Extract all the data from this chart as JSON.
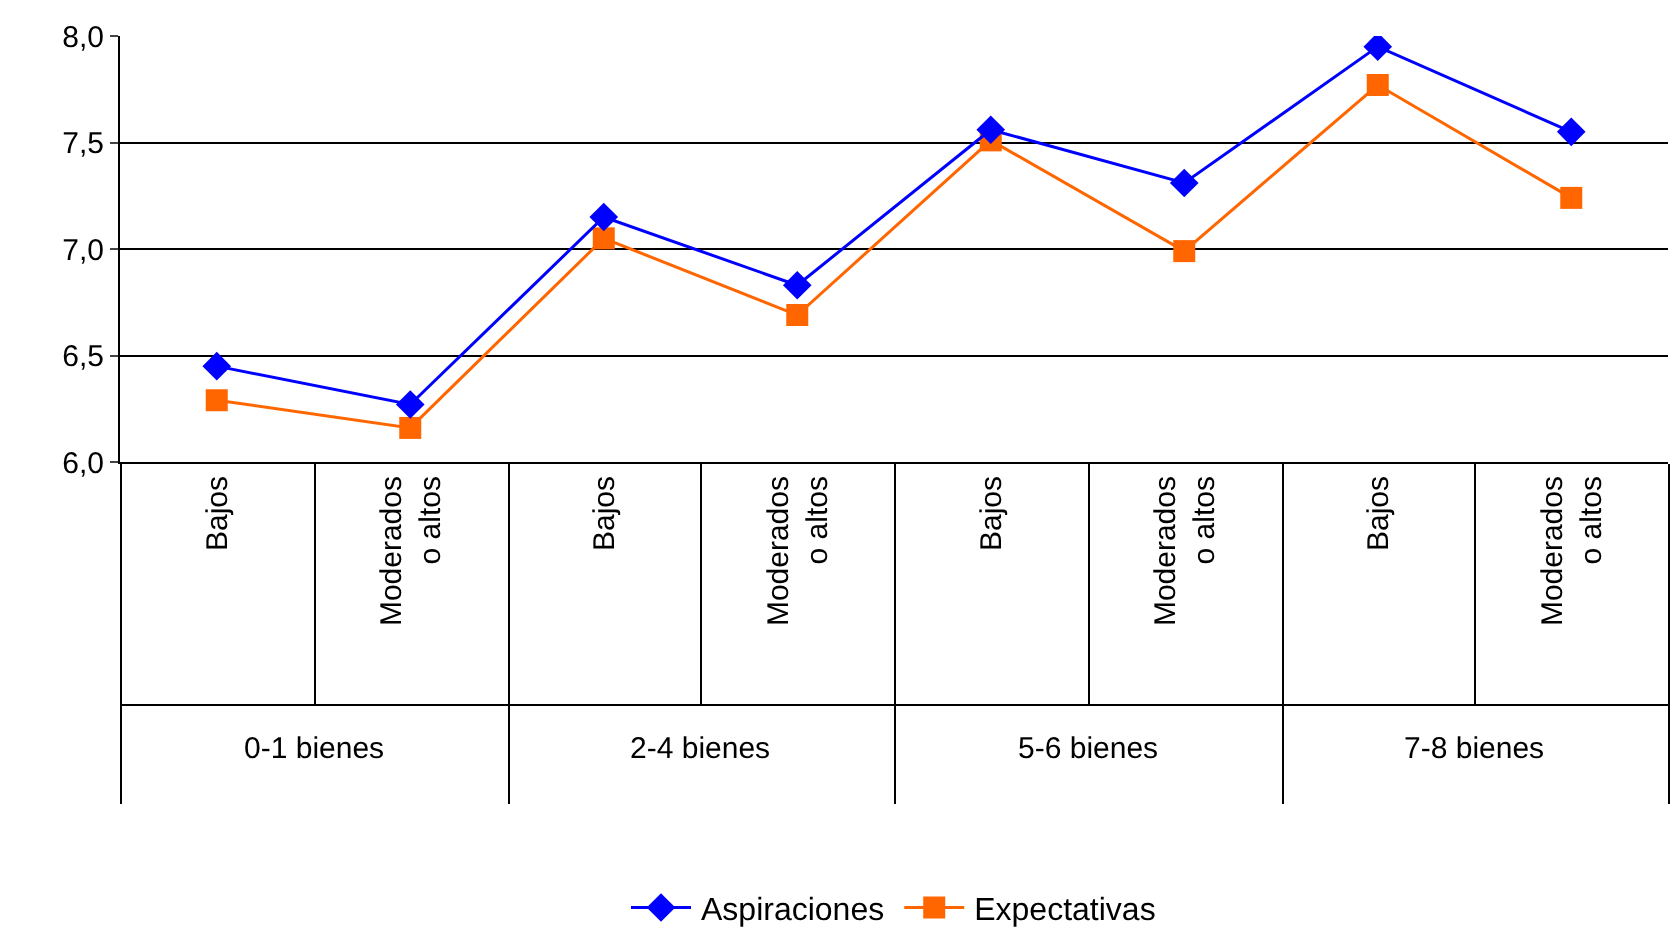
{
  "chart_data": {
    "type": "line",
    "categories": [
      "Bajos",
      "Moderados o altos",
      "Bajos",
      "Moderados o altos",
      "Bajos",
      "Moderados o altos",
      "Bajos",
      "Moderados o altos"
    ],
    "annotations": [
      "0-1 bienes",
      "2-4 bienes",
      "5-6 bienes",
      "7-8 bienes"
    ],
    "series": [
      {
        "name": "Aspiraciones",
        "color": "#0000ff",
        "marker": "diamond",
        "values": [
          6.45,
          6.27,
          7.15,
          6.83,
          7.56,
          7.31,
          7.95,
          7.55
        ]
      },
      {
        "name": "Expectativas",
        "color": "#ff6600",
        "marker": "square",
        "values": [
          6.29,
          6.16,
          7.05,
          6.69,
          7.51,
          6.99,
          7.77,
          7.24
        ]
      }
    ],
    "ylim": [
      6.0,
      8.0
    ],
    "yticks": [
      {
        "value": 6.0,
        "label": "6,0"
      },
      {
        "value": 6.5,
        "label": "6,5"
      },
      {
        "value": 7.0,
        "label": "7,0"
      },
      {
        "value": 7.5,
        "label": "7,5"
      },
      {
        "value": 8.0,
        "label": "8,0"
      }
    ],
    "grid": "y",
    "legend": "bottom",
    "line_style": "solid"
  }
}
